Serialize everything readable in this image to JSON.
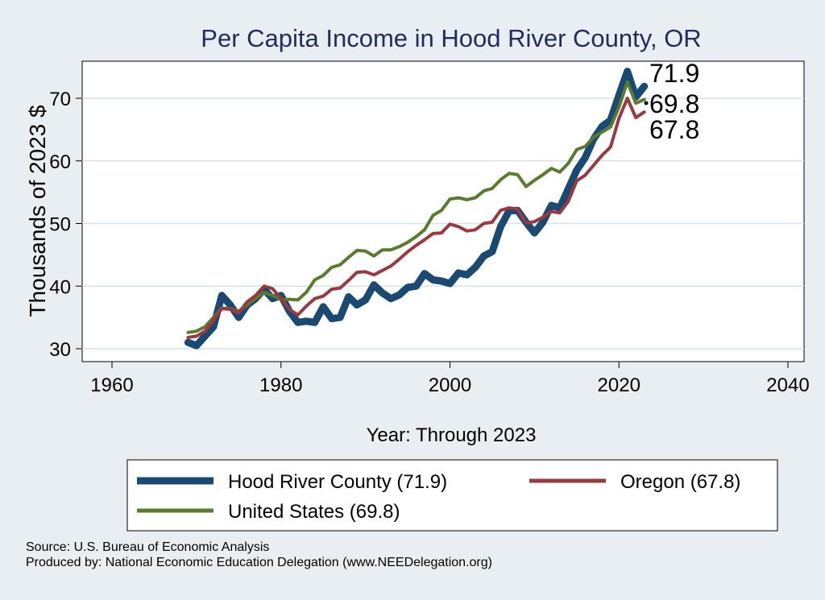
{
  "chart_data": {
    "type": "line",
    "title": "Per Capita Income in Hood River County, OR",
    "xlabel": "Year: Through 2023",
    "ylabel": "Thousands of 2023 $",
    "xlim": [
      1960,
      2040
    ],
    "ylim": [
      30,
      75
    ],
    "x_ticks": [
      "1960",
      "1980",
      "2000",
      "2020",
      "2040"
    ],
    "y_ticks": [
      "30",
      "40",
      "50",
      "60",
      "70"
    ],
    "x": [
      1969,
      1970,
      1971,
      1972,
      1973,
      1974,
      1975,
      1976,
      1977,
      1978,
      1979,
      1980,
      1981,
      1982,
      1983,
      1984,
      1985,
      1986,
      1987,
      1988,
      1989,
      1990,
      1991,
      1992,
      1993,
      1994,
      1995,
      1996,
      1997,
      1998,
      1999,
      2000,
      2001,
      2002,
      2003,
      2004,
      2005,
      2006,
      2007,
      2008,
      2009,
      2010,
      2011,
      2012,
      2013,
      2014,
      2015,
      2016,
      2017,
      2018,
      2019,
      2020,
      2021,
      2022,
      2023
    ],
    "series": [
      {
        "name": "Hood River County",
        "color": "#1a4a72",
        "width": 9,
        "values": [
          31.0,
          30.5,
          32.0,
          33.5,
          38.5,
          37.0,
          35.0,
          37.0,
          38.0,
          39.5,
          38.0,
          38.5,
          36.0,
          34.2,
          34.4,
          34.2,
          36.7,
          34.8,
          35.0,
          38.3,
          37.0,
          37.8,
          40.2,
          38.9,
          38.0,
          38.6,
          39.8,
          40.0,
          42.0,
          41.0,
          40.8,
          40.4,
          42.1,
          41.8,
          43.0,
          44.8,
          45.5,
          49.5,
          52.0,
          52.1,
          50.2,
          48.5,
          50.2,
          52.9,
          52.5,
          55.5,
          58.5,
          60.5,
          63.5,
          65.5,
          66.5,
          70.5,
          74.3,
          70.2,
          71.9
        ]
      },
      {
        "name": "United States",
        "color": "#5a7a30",
        "width": 4,
        "values": [
          32.6,
          32.8,
          33.5,
          35.0,
          36.5,
          36.4,
          36.0,
          37.0,
          38.0,
          39.0,
          38.5,
          37.8,
          37.9,
          37.8,
          39.0,
          41.0,
          41.7,
          43.0,
          43.4,
          44.6,
          45.7,
          45.6,
          44.8,
          45.8,
          45.8,
          46.3,
          47.0,
          47.9,
          49.0,
          51.3,
          52.1,
          53.9,
          54.1,
          53.8,
          54.1,
          55.2,
          55.6,
          57.0,
          58.0,
          57.8,
          55.9,
          56.9,
          57.8,
          58.8,
          58.2,
          59.6,
          61.8,
          62.3,
          63.8,
          64.6,
          65.4,
          68.6,
          72.6,
          69.2,
          69.8
        ]
      },
      {
        "name": "Oregon",
        "color": "#9a3a40",
        "width": 4,
        "values": [
          31.8,
          32.0,
          32.8,
          34.5,
          36.4,
          36.3,
          35.7,
          37.5,
          38.5,
          40.0,
          39.6,
          38.0,
          36.3,
          35.4,
          36.8,
          38.0,
          38.4,
          39.5,
          39.7,
          40.9,
          42.2,
          42.3,
          41.8,
          42.5,
          43.2,
          44.3,
          45.5,
          46.5,
          47.4,
          48.4,
          48.5,
          49.9,
          49.5,
          48.8,
          49.0,
          50.0,
          50.2,
          52.1,
          52.5,
          52.3,
          50.1,
          50.3,
          51.0,
          51.9,
          51.7,
          53.5,
          56.8,
          57.7,
          59.3,
          60.9,
          62.2,
          66.8,
          70.0,
          66.9,
          67.8
        ]
      }
    ],
    "end_labels": [
      "71.9",
      "69.8",
      "67.8"
    ],
    "legend": [
      {
        "label": "Hood River County (71.9)",
        "color": "#1a4a72",
        "width": 9
      },
      {
        "label": "Oregon (67.8)",
        "color": "#9a3a40",
        "width": 5
      },
      {
        "label": "United States (69.8)",
        "color": "#5a7a30",
        "width": 5
      }
    ],
    "legend_position": "bottom"
  },
  "source_note": "Source: U.S. Bureau of Economic Analysis",
  "producer_note": "Produced by: National Economic Education Delegation (www.NEEDelegation.org)"
}
